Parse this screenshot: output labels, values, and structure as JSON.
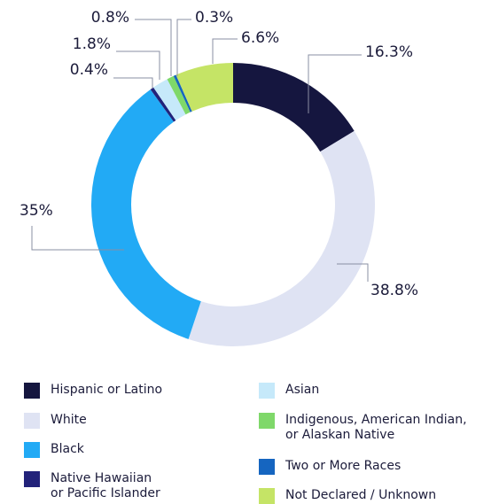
{
  "chart_data": {
    "type": "donut",
    "categories": [
      "Hispanic or Latino",
      "White",
      "Black",
      "Native Hawaiian\nor Pacific Islander",
      "Asian",
      "Indigenous, American Indian,\nor Alaskan Native",
      "Two or More Races",
      "Not Declared / Unknown"
    ],
    "values": [
      16.3,
      38.8,
      35,
      0.4,
      1.8,
      0.8,
      0.3,
      6.6
    ],
    "value_labels": [
      "16.3%",
      "38.8%",
      "35%",
      "0.4%",
      "1.8%",
      "0.8%",
      "0.3%",
      "6.6%"
    ],
    "colors": [
      "#15163f",
      "#dfe3f3",
      "#22aaf5",
      "#22227a",
      "#c6e9fa",
      "#7fd86a",
      "#1565c0",
      "#c5e466"
    ]
  }
}
